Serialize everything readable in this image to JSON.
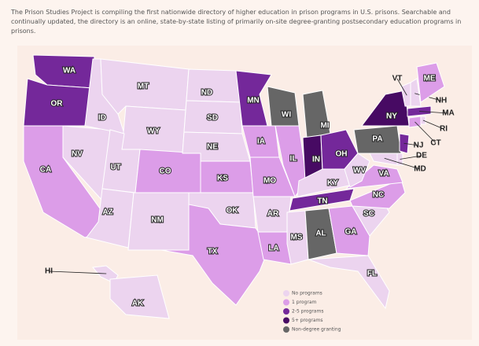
{
  "header": {
    "text": "The Prison Studies Project is compiling the first nationwide directory of higher education in prison programs in U.S. prisons. Searchable and continually updated, the directory is an online, state-by-state listing of primarily on-site degree-granting postsecondary education programs in prisons."
  },
  "legend": [
    {
      "label": "No programs",
      "color": "#ecd4ef"
    },
    {
      "label": "1 program",
      "color": "#dc9de8"
    },
    {
      "label": "2-5 programs",
      "color": "#74289a"
    },
    {
      "label": "5+ programs",
      "color": "#470a63"
    },
    {
      "label": "Non-degree granting",
      "color": "#666666"
    }
  ],
  "states": [
    {
      "abbr": "WA",
      "status": "2-5 programs"
    },
    {
      "abbr": "OR",
      "status": "2-5 programs"
    },
    {
      "abbr": "CA",
      "status": "1 program"
    },
    {
      "abbr": "NV",
      "status": "No programs"
    },
    {
      "abbr": "ID",
      "status": "No programs"
    },
    {
      "abbr": "MT",
      "status": "No programs"
    },
    {
      "abbr": "WY",
      "status": "No programs"
    },
    {
      "abbr": "UT",
      "status": "No programs"
    },
    {
      "abbr": "CO",
      "status": "1 program"
    },
    {
      "abbr": "AZ",
      "status": "No programs"
    },
    {
      "abbr": "NM",
      "status": "No programs"
    },
    {
      "abbr": "ND",
      "status": "No programs"
    },
    {
      "abbr": "SD",
      "status": "No programs"
    },
    {
      "abbr": "NE",
      "status": "No programs"
    },
    {
      "abbr": "KS",
      "status": "1 program"
    },
    {
      "abbr": "OK",
      "status": "No programs"
    },
    {
      "abbr": "TX",
      "status": "1 program"
    },
    {
      "abbr": "MN",
      "status": "2-5 programs"
    },
    {
      "abbr": "IA",
      "status": "1 program"
    },
    {
      "abbr": "MO",
      "status": "1 program"
    },
    {
      "abbr": "AR",
      "status": "No programs"
    },
    {
      "abbr": "LA",
      "status": "1 program"
    },
    {
      "abbr": "WI",
      "status": "Non-degree granting"
    },
    {
      "abbr": "IL",
      "status": "1 program"
    },
    {
      "abbr": "MI",
      "status": "Non-degree granting"
    },
    {
      "abbr": "IN",
      "status": "5+ programs"
    },
    {
      "abbr": "OH",
      "status": "2-5 programs"
    },
    {
      "abbr": "KY",
      "status": "No programs"
    },
    {
      "abbr": "TN",
      "status": "2-5 programs"
    },
    {
      "abbr": "MS",
      "status": "No programs"
    },
    {
      "abbr": "AL",
      "status": "Non-degree granting"
    },
    {
      "abbr": "GA",
      "status": "1 program"
    },
    {
      "abbr": "FL",
      "status": "No programs"
    },
    {
      "abbr": "SC",
      "status": "No programs"
    },
    {
      "abbr": "NC",
      "status": "1 program"
    },
    {
      "abbr": "VA",
      "status": "1 program"
    },
    {
      "abbr": "WV",
      "status": "No programs"
    },
    {
      "abbr": "PA",
      "status": "Non-degree granting"
    },
    {
      "abbr": "NY",
      "status": "5+ programs"
    },
    {
      "abbr": "NJ",
      "status": "2-5 programs"
    },
    {
      "abbr": "DE",
      "status": "No programs"
    },
    {
      "abbr": "MD",
      "status": "No programs"
    },
    {
      "abbr": "CT",
      "status": "1 program"
    },
    {
      "abbr": "RI",
      "status": "No programs"
    },
    {
      "abbr": "MA",
      "status": "2-5 programs"
    },
    {
      "abbr": "VT",
      "status": "No programs"
    },
    {
      "abbr": "NH",
      "status": "No programs"
    },
    {
      "abbr": "ME",
      "status": "1 program"
    },
    {
      "abbr": "HI",
      "status": "No programs"
    },
    {
      "abbr": "AK",
      "status": "No programs"
    }
  ]
}
